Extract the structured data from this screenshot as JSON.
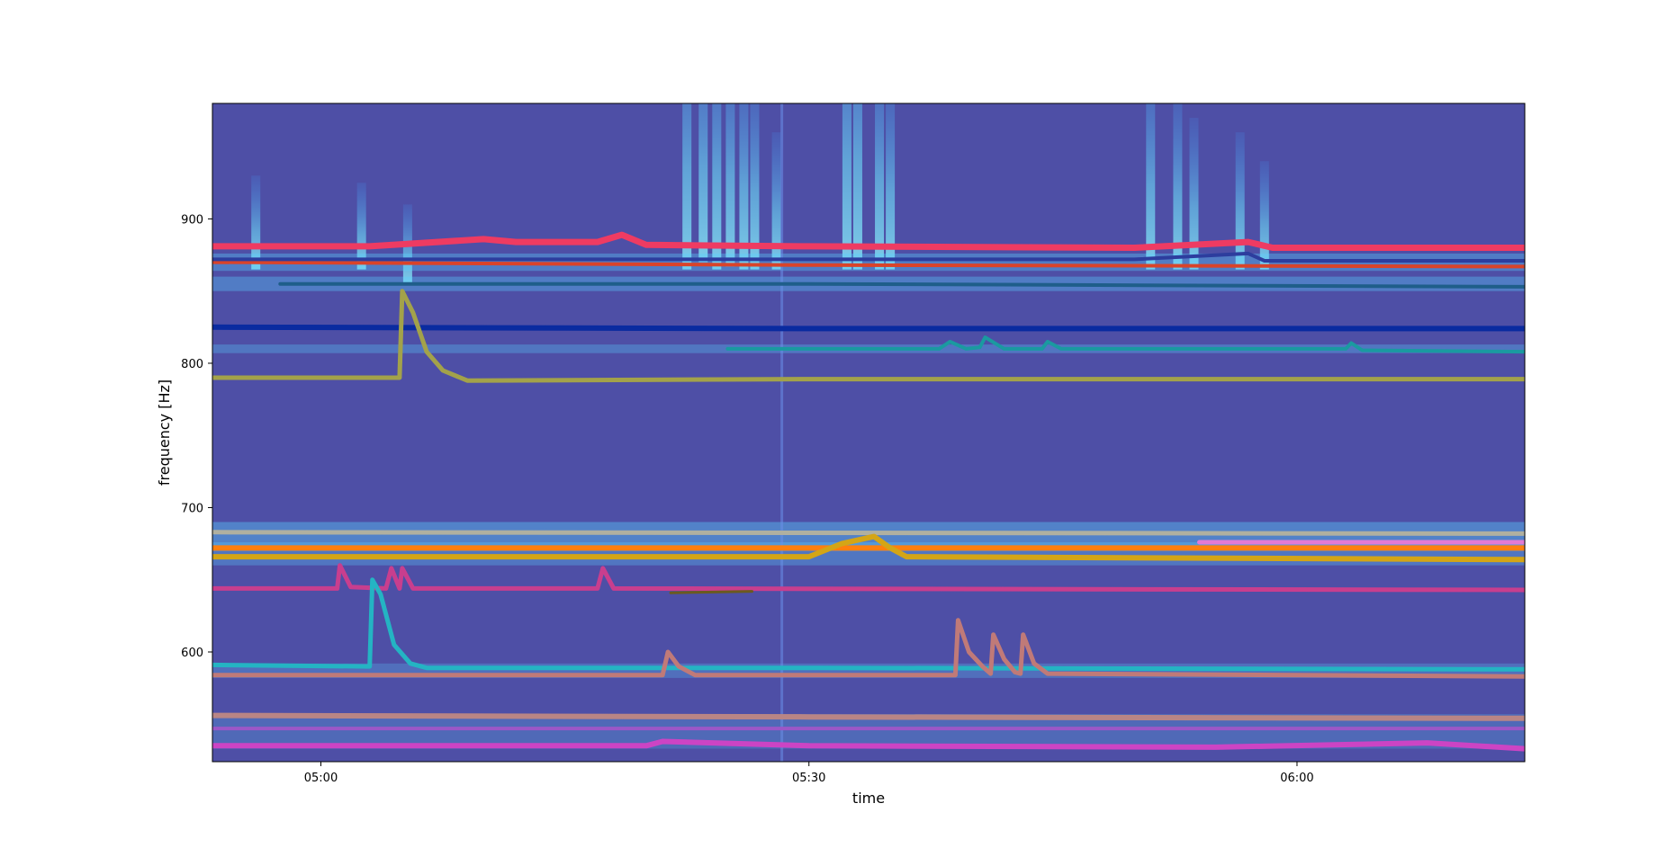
{
  "chart_data": {
    "type": "line",
    "title": "",
    "xlabel": "time",
    "ylabel": "frequency [Hz]",
    "xlim": [
      "04:53:20",
      "06:14:00"
    ],
    "ylim": [
      524,
      980
    ],
    "grid": false,
    "x_ticks": [
      {
        "value": "05:00:00",
        "label": "05:00"
      },
      {
        "value": "05:30:00",
        "label": "05:30"
      },
      {
        "value": "06:00:00",
        "label": "06:00"
      }
    ],
    "y_ticks": [
      {
        "value": 600,
        "label": "600"
      },
      {
        "value": 700,
        "label": "700"
      },
      {
        "value": 800,
        "label": "800"
      },
      {
        "value": 900,
        "label": "900"
      }
    ],
    "background": "spectrogram",
    "background_color": "#4e4fa6",
    "series": [
      {
        "color": "#ee3b62",
        "width": 7,
        "points": [
          [
            "04:53:20",
            881
          ],
          [
            "05:03:00",
            881
          ],
          [
            "05:10:00",
            886
          ],
          [
            "05:12:00",
            884
          ],
          [
            "05:17:00",
            884
          ],
          [
            "05:18:30",
            889
          ],
          [
            "05:20:00",
            882
          ],
          [
            "05:30:00",
            881
          ],
          [
            "05:50:00",
            880
          ],
          [
            "05:57:00",
            884
          ],
          [
            "05:58:30",
            880
          ],
          [
            "06:14:00",
            880
          ]
        ]
      },
      {
        "color": "#d9432a",
        "width": 4,
        "points": [
          [
            "04:53:20",
            870
          ],
          [
            "05:30:00",
            868
          ],
          [
            "06:14:00",
            867
          ]
        ]
      },
      {
        "color": "#2d3d9e",
        "width": 4,
        "points": [
          [
            "04:53:20",
            872
          ],
          [
            "05:50:00",
            872
          ],
          [
            "05:57:00",
            876
          ],
          [
            "05:58:00",
            871
          ],
          [
            "06:14:00",
            871
          ]
        ]
      },
      {
        "color": "#1f5e8a",
        "width": 4,
        "points": [
          [
            "04:57:30",
            855
          ],
          [
            "05:30:00",
            855
          ],
          [
            "06:14:00",
            853
          ]
        ]
      },
      {
        "color": "#0a2ba0",
        "width": 6,
        "points": [
          [
            "04:53:20",
            825
          ],
          [
            "05:30:00",
            824
          ],
          [
            "06:14:00",
            824
          ]
        ]
      },
      {
        "color": "#1a9aa0",
        "width": 4,
        "points": [
          [
            "05:25:00",
            810
          ],
          [
            "05:38:00",
            810
          ],
          [
            "05:38:40",
            815
          ],
          [
            "05:39:40",
            810
          ],
          [
            "05:40:30",
            811
          ],
          [
            "05:40:50",
            818
          ],
          [
            "05:42:00",
            810
          ],
          [
            "05:44:20",
            810
          ],
          [
            "05:44:40",
            815
          ],
          [
            "05:45:30",
            810
          ],
          [
            "06:03:00",
            810
          ],
          [
            "06:03:20",
            814
          ],
          [
            "06:04:00",
            809
          ],
          [
            "06:14:00",
            808
          ]
        ]
      },
      {
        "color": "#a3a24a",
        "width": 5,
        "points": [
          [
            "04:53:20",
            790
          ],
          [
            "05:04:50",
            790
          ],
          [
            "05:05:00",
            850
          ],
          [
            "05:05:40",
            835
          ],
          [
            "05:06:30",
            808
          ],
          [
            "05:07:30",
            795
          ],
          [
            "05:09:00",
            788
          ],
          [
            "05:30:00",
            789
          ],
          [
            "06:14:00",
            789
          ]
        ]
      },
      {
        "color": "#b0b0a0",
        "width": 5,
        "points": [
          [
            "04:53:20",
            683
          ],
          [
            "06:14:00",
            682
          ]
        ]
      },
      {
        "color": "#ff7f0e",
        "width": 6,
        "points": [
          [
            "04:53:20",
            672
          ],
          [
            "05:30:00",
            672
          ],
          [
            "06:14:00",
            672
          ]
        ]
      },
      {
        "color": "#d4a516",
        "width": 6,
        "points": [
          [
            "04:53:20",
            666
          ],
          [
            "05:30:00",
            666
          ],
          [
            "05:32:00",
            675
          ],
          [
            "05:34:00",
            680
          ],
          [
            "05:35:00",
            672
          ],
          [
            "05:36:00",
            666
          ],
          [
            "06:14:00",
            664
          ]
        ]
      },
      {
        "color": "#e37ad3",
        "width": 5,
        "points": [
          [
            "05:54:00",
            676
          ],
          [
            "06:14:00",
            676
          ]
        ]
      },
      {
        "color": "#c83e8e",
        "width": 5,
        "points": [
          [
            "04:53:20",
            644
          ],
          [
            "05:01:00",
            644
          ],
          [
            "05:01:10",
            660
          ],
          [
            "05:01:50",
            645
          ],
          [
            "05:04:00",
            644
          ],
          [
            "05:04:20",
            658
          ],
          [
            "05:04:50",
            644
          ],
          [
            "05:05:00",
            658
          ],
          [
            "05:05:40",
            644
          ],
          [
            "05:17:00",
            644
          ],
          [
            "05:17:20",
            658
          ],
          [
            "05:18:00",
            644
          ],
          [
            "06:14:00",
            643
          ]
        ]
      },
      {
        "color": "#6b5a1e",
        "width": 3,
        "points": [
          [
            "05:21:30",
            641
          ],
          [
            "05:26:30",
            642
          ]
        ]
      },
      {
        "color": "#24b4c3",
        "width": 5,
        "points": [
          [
            "04:53:20",
            591
          ],
          [
            "05:03:00",
            590
          ],
          [
            "05:03:10",
            650
          ],
          [
            "05:03:40",
            640
          ],
          [
            "05:04:30",
            605
          ],
          [
            "05:05:30",
            592
          ],
          [
            "05:06:30",
            589
          ],
          [
            "05:30:00",
            589
          ],
          [
            "06:14:00",
            588
          ]
        ]
      },
      {
        "color": "#c07a78",
        "width": 5,
        "points": [
          [
            "04:53:20",
            584
          ],
          [
            "05:21:00",
            584
          ],
          [
            "05:21:20",
            600
          ],
          [
            "05:22:00",
            590
          ],
          [
            "05:23:00",
            584
          ],
          [
            "05:39:00",
            584
          ],
          [
            "05:39:10",
            622
          ],
          [
            "05:39:50",
            600
          ],
          [
            "05:40:40",
            590
          ],
          [
            "05:41:10",
            585
          ],
          [
            "05:41:20",
            612
          ],
          [
            "05:42:00",
            595
          ],
          [
            "05:42:40",
            586
          ],
          [
            "05:43:00",
            585
          ],
          [
            "05:43:10",
            612
          ],
          [
            "05:43:50",
            592
          ],
          [
            "05:44:40",
            585
          ],
          [
            "06:14:00",
            583
          ]
        ]
      },
      {
        "color": "#b98585",
        "width": 6,
        "points": [
          [
            "04:53:20",
            556
          ],
          [
            "05:30:00",
            555
          ],
          [
            "06:14:00",
            554
          ]
        ]
      },
      {
        "color": "#9b57c7",
        "width": 4,
        "points": [
          [
            "04:53:20",
            547
          ],
          [
            "06:14:00",
            547
          ]
        ]
      },
      {
        "color": "#cc44c4",
        "width": 6,
        "points": [
          [
            "04:53:20",
            535
          ],
          [
            "05:20:00",
            535
          ],
          [
            "05:21:00",
            538
          ],
          [
            "05:30:00",
            535
          ],
          [
            "05:55:00",
            534
          ],
          [
            "06:08:00",
            537
          ],
          [
            "06:14:00",
            533
          ]
        ]
      }
    ]
  }
}
